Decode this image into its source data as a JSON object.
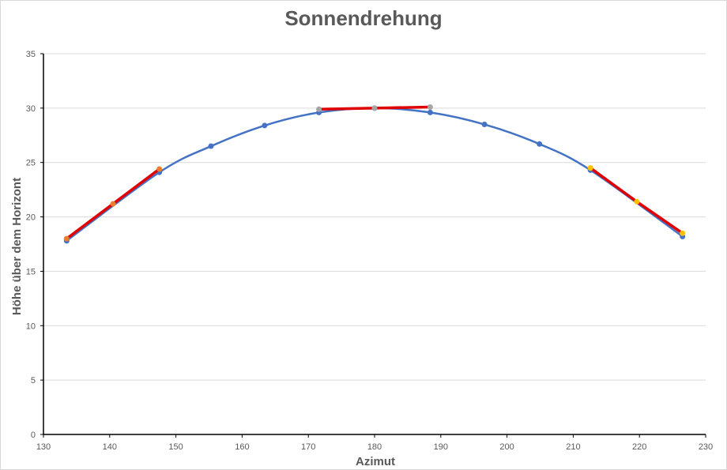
{
  "chart_data": {
    "type": "scatter",
    "title": "Sonnendrehung",
    "xlabel": "Azimut",
    "ylabel": "Höhe über dem Horizont",
    "xlim": [
      130,
      230
    ],
    "ylim": [
      0,
      35
    ],
    "xticks": [
      130,
      140,
      150,
      160,
      170,
      180,
      190,
      200,
      210,
      220,
      230
    ],
    "yticks": [
      0,
      5,
      10,
      15,
      20,
      25,
      30,
      35
    ],
    "grid": true,
    "legend": "none",
    "series": [
      {
        "color": "#4472c4",
        "style": "smooth-line-markers",
        "x": [
          133.5,
          147.5,
          155.3,
          163.4,
          171.6,
          180.0,
          188.4,
          196.6,
          204.9,
          212.6,
          226.5
        ],
        "y": [
          17.8,
          24.1,
          26.5,
          28.4,
          29.6,
          30.0,
          29.6,
          28.5,
          26.7,
          24.3,
          18.2
        ]
      },
      {
        "color": "#ed7d31",
        "line_color": "#e00000",
        "style": "line-markers",
        "x": [
          133.5,
          140.5,
          147.5
        ],
        "y": [
          18.0,
          21.2,
          24.4
        ]
      },
      {
        "color": "#a5a5a5",
        "line_color": "#e00000",
        "style": "line-markers",
        "x": [
          171.6,
          180.0,
          188.4
        ],
        "y": [
          29.9,
          30.0,
          30.1
        ]
      },
      {
        "color": "#ffc000",
        "line_color": "#e00000",
        "style": "line-markers",
        "x": [
          212.6,
          219.6,
          226.5
        ],
        "y": [
          24.5,
          21.4,
          18.5
        ]
      }
    ]
  }
}
